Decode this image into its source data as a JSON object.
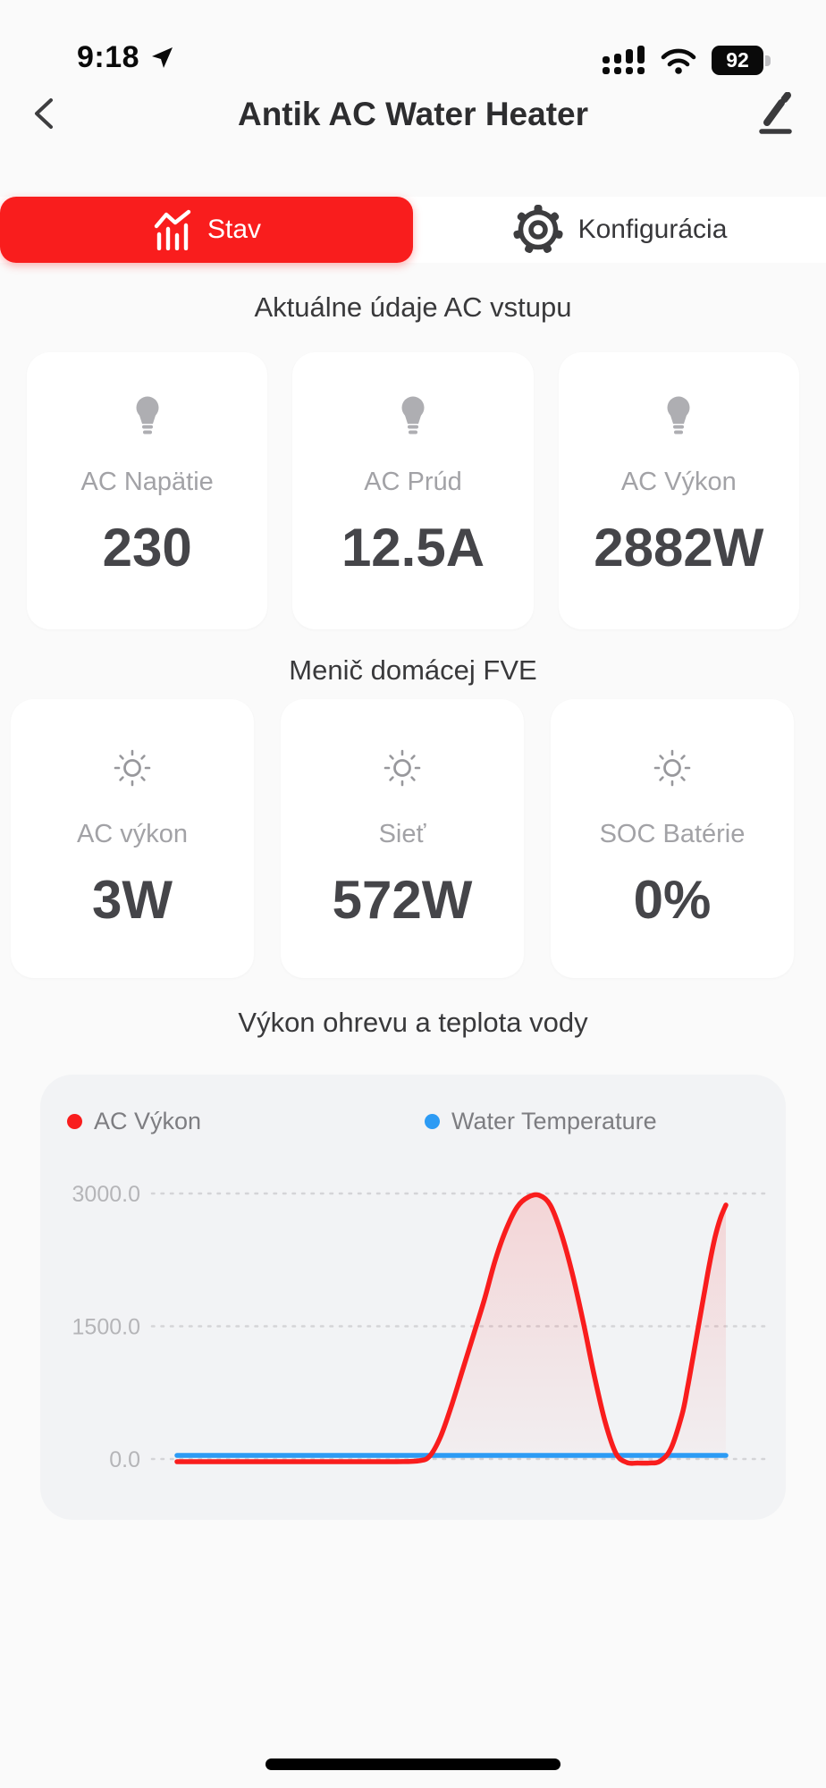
{
  "status_bar": {
    "time": "9:18",
    "battery": "92"
  },
  "header": {
    "title": "Antik AC Water Heater"
  },
  "tabs": [
    {
      "label": "Stav",
      "icon": "chart-icon",
      "active": true
    },
    {
      "label": "Konfigurácia",
      "icon": "gear-icon",
      "active": false
    }
  ],
  "sections": [
    {
      "heading": "Aktuálne údaje AC vstupu",
      "icon": "bulb-icon",
      "cards": [
        {
          "label": "AC Napätie",
          "value": "230"
        },
        {
          "label": "AC Prúd",
          "value": "12.5A"
        },
        {
          "label": "AC Výkon",
          "value": "2882W"
        }
      ]
    },
    {
      "heading": "Menič domácej FVE",
      "icon": "sun-icon",
      "cards": [
        {
          "label": "AC výkon",
          "value": "3W"
        },
        {
          "label": "Sieť",
          "value": "572W"
        },
        {
          "label": "SOC Batérie",
          "value": "0%"
        }
      ]
    }
  ],
  "chart_section": {
    "heading": "Výkon ohrevu a teplota vody"
  },
  "chart_data": {
    "type": "line",
    "title": "Výkon ohrevu a teplota vody",
    "ylim": [
      0,
      3000
    ],
    "yticks": [
      0,
      1500,
      3000
    ],
    "ytick_labels": [
      "0.0",
      "1500.0",
      "3000.0"
    ],
    "grid": "horizontal-dashed",
    "legend_position": "top",
    "x_unit": "percent-of-plot-width",
    "series": [
      {
        "name": "AC Výkon",
        "color": "#f91d1d",
        "fill": true,
        "points": [
          [
            0,
            -30
          ],
          [
            8,
            -30
          ],
          [
            16,
            -30
          ],
          [
            24,
            -30
          ],
          [
            32,
            -30
          ],
          [
            40,
            -30
          ],
          [
            44,
            -20
          ],
          [
            46,
            30
          ],
          [
            48,
            250
          ],
          [
            50,
            600
          ],
          [
            52,
            1000
          ],
          [
            54,
            1400
          ],
          [
            56,
            1800
          ],
          [
            58,
            2250
          ],
          [
            60,
            2600
          ],
          [
            62,
            2850
          ],
          [
            64,
            2960
          ],
          [
            66,
            2980
          ],
          [
            68,
            2870
          ],
          [
            70,
            2550
          ],
          [
            72,
            2100
          ],
          [
            74,
            1550
          ],
          [
            76,
            950
          ],
          [
            78,
            420
          ],
          [
            80,
            60
          ],
          [
            82,
            -40
          ],
          [
            84,
            -45
          ],
          [
            86,
            -45
          ],
          [
            88,
            -25
          ],
          [
            90,
            120
          ],
          [
            92,
            500
          ],
          [
            93,
            800
          ],
          [
            94,
            1150
          ],
          [
            95,
            1500
          ],
          [
            96,
            1850
          ],
          [
            97,
            2200
          ],
          [
            98,
            2500
          ],
          [
            99,
            2720
          ],
          [
            100,
            2870
          ]
        ]
      },
      {
        "name": "Water Temperature",
        "color": "#2d9bf4",
        "fill": false,
        "points": [
          [
            0,
            40
          ],
          [
            100,
            40
          ]
        ]
      }
    ]
  },
  "colors": {
    "accent_red": "#f91d1d",
    "series_blue": "#2d9bf4",
    "page_bg": "#fafafa",
    "chart_card_bg": "#f2f3f5"
  }
}
